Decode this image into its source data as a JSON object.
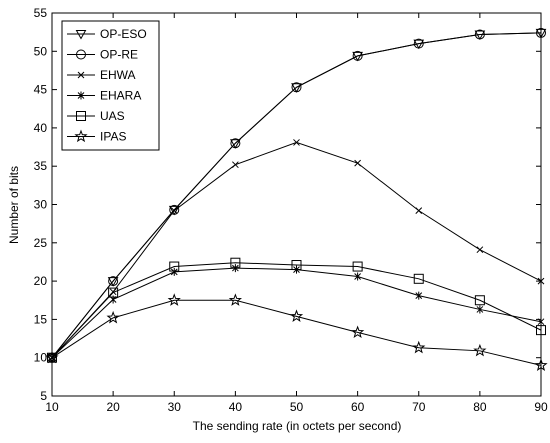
{
  "chart_data": {
    "type": "line",
    "title": "",
    "xlabel": "The sending rate (in octets per second)",
    "ylabel": "Number of bits",
    "xlim": [
      10,
      90
    ],
    "ylim": [
      5,
      55
    ],
    "xticks": [
      10,
      20,
      30,
      40,
      50,
      60,
      70,
      80,
      90
    ],
    "yticks": [
      5,
      10,
      15,
      20,
      25,
      30,
      35,
      40,
      45,
      50,
      55
    ],
    "grid": false,
    "legend_position": "top-left",
    "x": [
      10,
      20,
      30,
      40,
      50,
      60,
      70,
      80,
      90
    ],
    "series": [
      {
        "name": "OP-ESO",
        "marker": "triangle-down",
        "values": [
          10,
          20,
          29.3,
          38,
          45.3,
          49.4,
          51,
          52.2,
          52.4
        ]
      },
      {
        "name": "OP-RE",
        "marker": "circle",
        "values": [
          10,
          20,
          29.3,
          38,
          45.3,
          49.4,
          51,
          52.2,
          52.4
        ]
      },
      {
        "name": "EHWA",
        "marker": "x",
        "values": [
          10,
          18.6,
          29.2,
          35.2,
          38.1,
          35.4,
          29.2,
          24.1,
          20
        ]
      },
      {
        "name": "EHARA",
        "marker": "asterisk",
        "values": [
          10,
          17.6,
          21.2,
          21.7,
          21.5,
          20.6,
          18.1,
          16.3,
          14.7
        ]
      },
      {
        "name": "UAS",
        "marker": "square",
        "values": [
          10,
          18.5,
          21.9,
          22.4,
          22.1,
          21.9,
          20.3,
          17.5,
          13.6
        ]
      },
      {
        "name": "IPAS",
        "marker": "star",
        "values": [
          10,
          15.2,
          17.5,
          17.5,
          15.4,
          13.3,
          11.3,
          10.9,
          9
        ]
      }
    ],
    "line_color": "#000000"
  }
}
